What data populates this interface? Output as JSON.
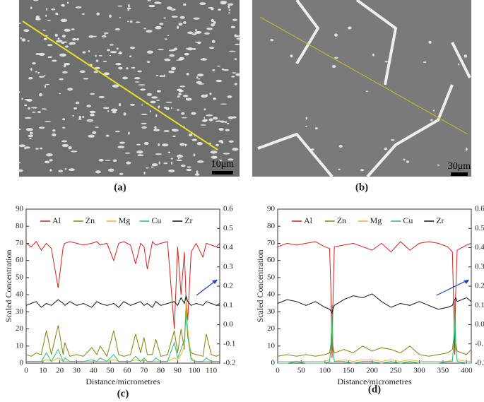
{
  "panels": [
    {
      "label": "(a)",
      "scale_bar": "10μm"
    },
    {
      "label": "(b)",
      "scale_bar": "30μm"
    }
  ],
  "chart_data": [
    {
      "type": "line",
      "label": "(c)",
      "xlabel": "Distance/micrometres",
      "ylabel": "Scaled Concentration",
      "xlim": [
        0,
        115
      ],
      "xticks": [
        0,
        10,
        20,
        30,
        40,
        50,
        60,
        70,
        80,
        90,
        100,
        110
      ],
      "ylim": [
        0,
        90
      ],
      "yticks": [
        0,
        10,
        20,
        30,
        40,
        50,
        60,
        70,
        80,
        90
      ],
      "y2lim": [
        -0.2,
        0.6
      ],
      "y2ticks": [
        -0.2,
        -0.1,
        {
          "value": 0,
          "label": "0.0"
        },
        0.1,
        0.2,
        0.3,
        0.4,
        0.5,
        0.6
      ],
      "x": [
        0,
        3,
        6,
        9,
        12,
        15,
        19,
        22,
        23,
        26,
        30,
        34,
        39,
        42,
        44,
        48,
        52,
        55,
        58,
        62,
        65,
        68,
        70,
        72,
        75,
        77,
        80,
        84,
        88,
        90,
        92,
        94,
        95,
        96,
        98,
        101,
        105,
        107,
        110,
        113,
        115
      ],
      "series": [
        {
          "name": "Al",
          "color": "#d42020",
          "values": [
            70,
            68,
            71,
            66,
            70,
            67,
            44,
            68,
            70,
            71,
            70,
            69,
            70,
            71,
            69,
            70,
            60,
            70,
            71,
            69,
            58,
            70,
            68,
            55,
            71,
            69,
            70,
            71,
            20,
            68,
            40,
            65,
            38,
            25,
            65,
            70,
            62,
            70,
            69,
            68,
            70
          ]
        },
        {
          "name": "Zn",
          "color": "#808010",
          "values": [
            5,
            4,
            6,
            5,
            19,
            5,
            22,
            5,
            12,
            4,
            5,
            4,
            9,
            5,
            10,
            4,
            19,
            5,
            4,
            5,
            17,
            6,
            15,
            5,
            5,
            14,
            4,
            5,
            19,
            6,
            20,
            8,
            35,
            15,
            6,
            5,
            4,
            17,
            5,
            4,
            5
          ]
        },
        {
          "name": "Mg",
          "color": "#e8b820",
          "values": [
            1,
            1,
            1,
            1,
            2,
            1,
            3,
            1,
            1,
            1,
            1,
            1,
            1,
            1,
            1,
            1,
            2,
            1,
            1,
            1,
            2,
            1,
            2,
            1,
            1,
            1,
            1,
            1,
            3,
            2,
            5,
            10,
            37,
            20,
            3,
            1,
            1,
            1,
            1,
            1,
            1
          ]
        },
        {
          "name": "Cu",
          "color": "#2fb87c",
          "values": [
            1,
            1,
            1,
            1,
            6,
            1,
            8,
            1,
            3,
            1,
            1,
            1,
            2,
            1,
            3,
            1,
            5,
            1,
            1,
            1,
            4,
            1,
            3,
            1,
            1,
            3,
            1,
            1,
            12,
            3,
            8,
            14,
            30,
            16,
            2,
            1,
            1,
            3,
            1,
            1,
            1
          ]
        },
        {
          "name": "Zr",
          "color": "#111111",
          "axis": "y2",
          "values": [
            0.1,
            0.11,
            0.12,
            0.09,
            0.11,
            0.1,
            0.13,
            0.11,
            0.1,
            0.12,
            0.1,
            0.11,
            0.09,
            0.12,
            0.11,
            0.1,
            0.11,
            0.09,
            0.12,
            0.1,
            0.11,
            0.12,
            0.1,
            0.11,
            0.09,
            0.12,
            0.1,
            0.11,
            0.12,
            0.1,
            0.14,
            0.11,
            0.15,
            0.12,
            0.1,
            0.11,
            0.1,
            0.12,
            0.11,
            0.1,
            0.11
          ]
        }
      ]
    },
    {
      "type": "line",
      "label": "(d)",
      "xlabel": "Distance/micrometres",
      "ylabel": "Scaled Concentration",
      "xlim": [
        0,
        410
      ],
      "xticks": [
        0,
        50,
        100,
        150,
        200,
        250,
        300,
        350,
        400
      ],
      "ylim": [
        0,
        90
      ],
      "yticks": [
        0,
        10,
        20,
        30,
        40,
        50,
        60,
        70,
        80,
        90
      ],
      "y2lim": [
        -0.2,
        0.6
      ],
      "y2ticks": [
        -0.2,
        -0.1,
        {
          "value": 0,
          "label": "0.0"
        },
        0.1,
        0.2,
        0.3,
        0.4,
        0.5,
        0.6
      ],
      "x": [
        0,
        20,
        40,
        60,
        80,
        100,
        110,
        113,
        115,
        117,
        120,
        140,
        160,
        180,
        200,
        220,
        240,
        260,
        280,
        300,
        320,
        340,
        360,
        370,
        373,
        375,
        377,
        380,
        400,
        410
      ],
      "series": [
        {
          "name": "Al",
          "color": "#d42020",
          "values": [
            68,
            70,
            69,
            70,
            71,
            68,
            67,
            40,
            3,
            35,
            68,
            69,
            70,
            68,
            66,
            70,
            65,
            71,
            66,
            70,
            71,
            70,
            68,
            65,
            30,
            5,
            40,
            66,
            69,
            70
          ]
        },
        {
          "name": "Zn",
          "color": "#808010",
          "values": [
            4,
            5,
            4,
            5,
            4,
            5,
            6,
            12,
            30,
            10,
            6,
            8,
            6,
            10,
            7,
            9,
            8,
            6,
            10,
            5,
            4,
            5,
            6,
            8,
            15,
            32,
            12,
            7,
            5,
            8
          ]
        },
        {
          "name": "Mg",
          "color": "#e8b820",
          "values": [
            1,
            1,
            1,
            1,
            1,
            1,
            2,
            8,
            28,
            6,
            1,
            2,
            1,
            2,
            2,
            1,
            2,
            1,
            2,
            1,
            1,
            1,
            1,
            2,
            10,
            30,
            8,
            2,
            1,
            1
          ]
        },
        {
          "name": "Cu",
          "color": "#2fb87c",
          "values": [
            0,
            0,
            1,
            0,
            0,
            0,
            1,
            10,
            34,
            8,
            1,
            1,
            0,
            1,
            1,
            0,
            1,
            0,
            1,
            0,
            0,
            0,
            1,
            1,
            12,
            36,
            10,
            1,
            0,
            0
          ]
        },
        {
          "name": "Zr",
          "color": "#111111",
          "axis": "y2",
          "values": [
            0.11,
            0.13,
            0.12,
            0.1,
            0.12,
            0.09,
            0.08,
            0.07,
            0.06,
            0.08,
            0.1,
            0.13,
            0.15,
            0.14,
            0.16,
            0.12,
            0.09,
            0.11,
            0.1,
            0.12,
            0.1,
            0.08,
            0.09,
            0.1,
            0.12,
            0.13,
            0.14,
            0.12,
            0.14,
            0.12
          ]
        }
      ]
    }
  ]
}
